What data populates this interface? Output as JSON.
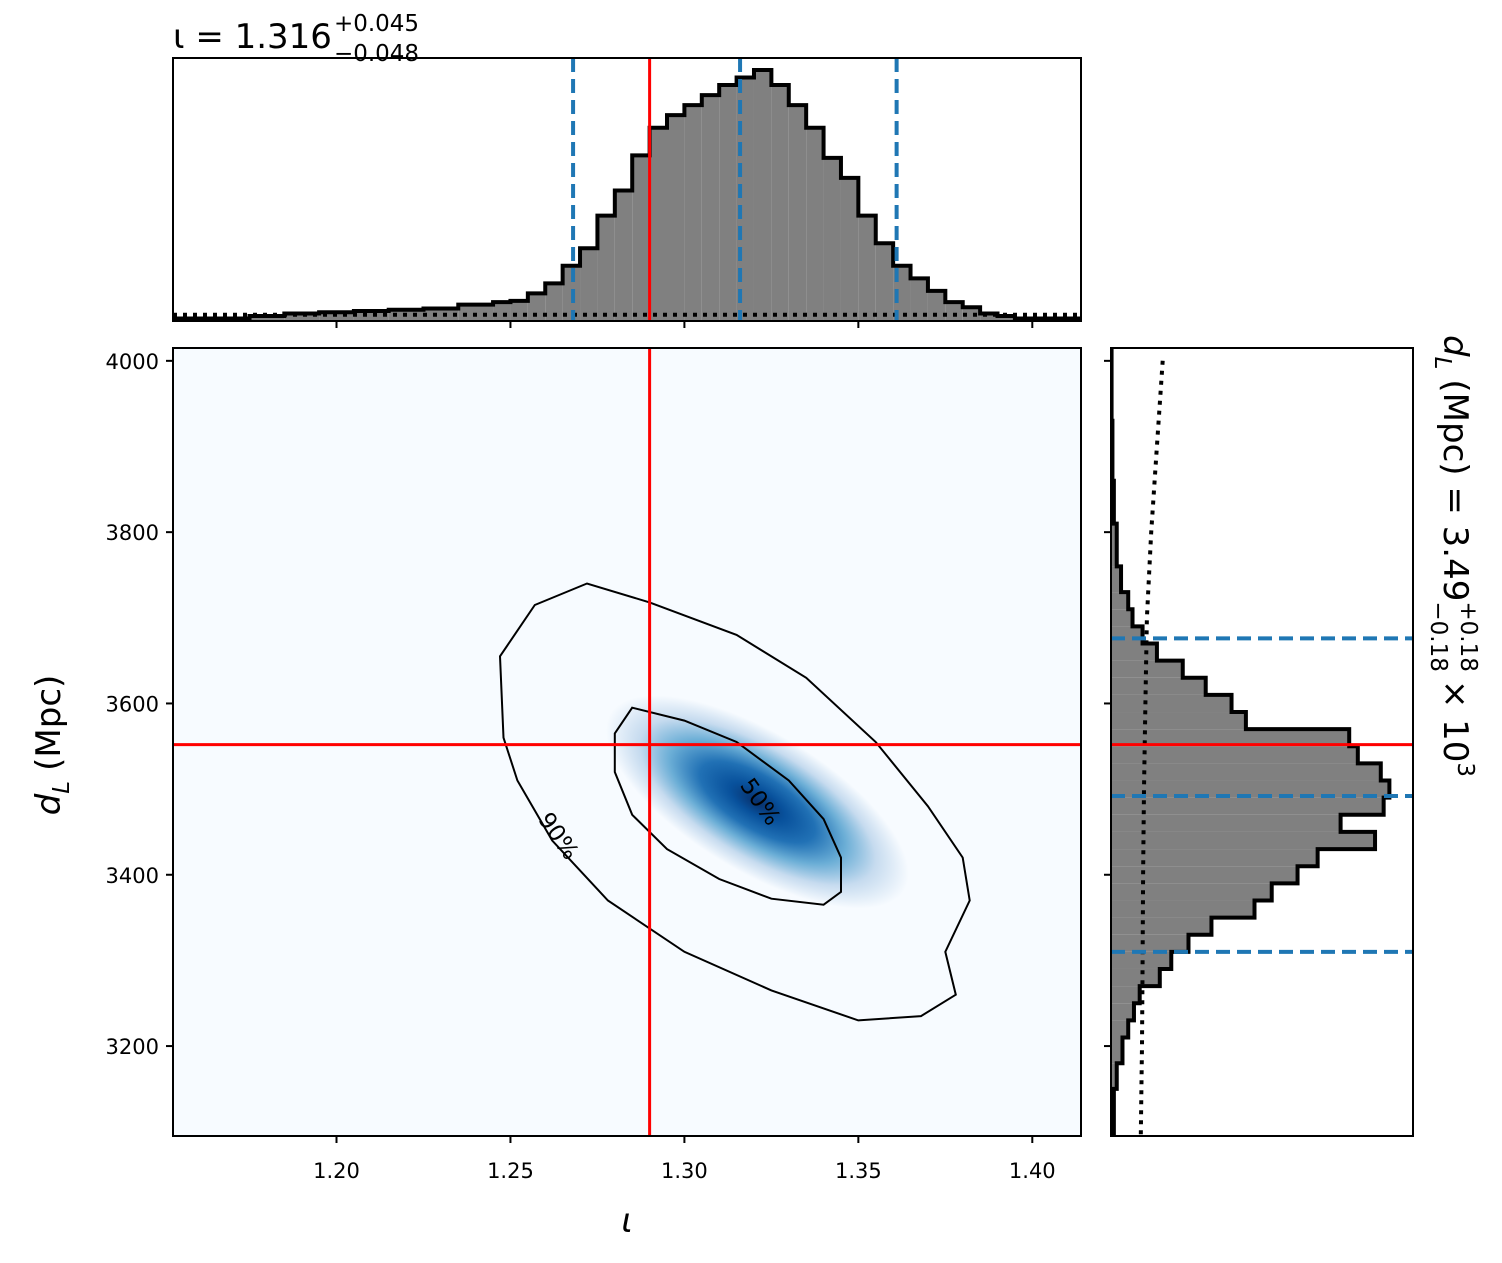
{
  "chart_data": [
    {
      "panel": "top-marginal",
      "type": "histogram",
      "title_main": "ι = 1.316",
      "title_sup": "+0.045",
      "title_sub": "−0.048",
      "xlim": [
        1.153,
        1.414
      ],
      "x_ticks": [
        1.2,
        1.25,
        1.3,
        1.35,
        1.4
      ],
      "bin_edges": [
        1.153,
        1.175,
        1.185,
        1.195,
        1.205,
        1.215,
        1.225,
        1.235,
        1.245,
        1.25,
        1.255,
        1.26,
        1.265,
        1.27,
        1.275,
        1.28,
        1.285,
        1.29,
        1.295,
        1.3,
        1.305,
        1.31,
        1.315,
        1.32,
        1.325,
        1.33,
        1.335,
        1.34,
        1.345,
        1.35,
        1.355,
        1.36,
        1.365,
        1.37,
        1.375,
        1.38,
        1.385,
        1.39,
        1.395,
        1.414
      ],
      "counts": [
        0.01,
        0.02,
        0.03,
        0.035,
        0.04,
        0.045,
        0.05,
        0.065,
        0.075,
        0.08,
        0.11,
        0.15,
        0.22,
        0.29,
        0.42,
        0.52,
        0.66,
        0.77,
        0.82,
        0.86,
        0.9,
        0.94,
        0.97,
        1.0,
        0.94,
        0.86,
        0.77,
        0.65,
        0.57,
        0.42,
        0.31,
        0.22,
        0.17,
        0.12,
        0.075,
        0.055,
        0.03,
        0.02,
        0.01
      ],
      "prior_level": 0.025,
      "quantiles": [
        1.268,
        1.316,
        1.361
      ],
      "injection": 1.29,
      "colors": {
        "fill": "#808080",
        "edge": "#000000",
        "quantile": "#1f77b4",
        "injection": "#ff0000"
      }
    },
    {
      "panel": "joint",
      "type": "heatmap",
      "xlabel": "ι",
      "ylabel": "d",
      "ylabel_sub": "L",
      "ylabel_unit": "(Mpc)",
      "xlim": [
        1.153,
        1.414
      ],
      "ylim": [
        3095,
        4015
      ],
      "x_ticks": [
        1.2,
        1.25,
        1.3,
        1.35,
        1.4
      ],
      "y_ticks": [
        3200,
        3400,
        3600,
        3800,
        4000
      ],
      "density_peak": {
        "x": 1.321,
        "y": 3485,
        "rot_deg": 31,
        "sigma_major": 0.45,
        "sigma_minor": 0.16
      },
      "contours": [
        {
          "label": "50%",
          "points": [
            [
              1.285,
              3595
            ],
            [
              1.3,
              3580
            ],
            [
              1.315,
              3555
            ],
            [
              1.33,
              3510
            ],
            [
              1.34,
              3465
            ],
            [
              1.345,
              3420
            ],
            [
              1.345,
              3380
            ],
            [
              1.34,
              3365
            ],
            [
              1.325,
              3372
            ],
            [
              1.31,
              3395
            ],
            [
              1.295,
              3430
            ],
            [
              1.285,
              3470
            ],
            [
              1.28,
              3520
            ],
            [
              1.28,
              3565
            ],
            [
              1.285,
              3595
            ]
          ]
        },
        {
          "label": "90%",
          "points": [
            [
              1.257,
              3715
            ],
            [
              1.272,
              3740
            ],
            [
              1.29,
              3718
            ],
            [
              1.315,
              3680
            ],
            [
              1.335,
              3630
            ],
            [
              1.355,
              3555
            ],
            [
              1.37,
              3480
            ],
            [
              1.38,
              3420
            ],
            [
              1.382,
              3370
            ],
            [
              1.375,
              3310
            ],
            [
              1.378,
              3260
            ],
            [
              1.368,
              3235
            ],
            [
              1.35,
              3230
            ],
            [
              1.325,
              3265
            ],
            [
              1.3,
              3310
            ],
            [
              1.278,
              3370
            ],
            [
              1.262,
              3440
            ],
            [
              1.252,
              3510
            ],
            [
              1.248,
              3560
            ],
            [
              1.247,
              3655
            ],
            [
              1.257,
              3715
            ]
          ]
        }
      ],
      "injection": {
        "x": 1.29,
        "y": 3552
      },
      "colors": {
        "contour": "#000000",
        "injection": "#ff0000",
        "cmap_low": "#f7fbff",
        "cmap_high": "#08306b"
      }
    },
    {
      "panel": "right-marginal",
      "type": "histogram",
      "orientation": "horizontal",
      "title_main": "d",
      "title_sub_L": "L",
      "title_rest": "(Mpc) = 3.49",
      "title_sup": "+0.18",
      "title_sub": "−0.18",
      "title_tail": "× 10",
      "title_exp": "3",
      "ylim": [
        3095,
        4015
      ],
      "bin_edges": [
        3095,
        3150,
        3180,
        3210,
        3230,
        3250,
        3270,
        3290,
        3310,
        3330,
        3350,
        3370,
        3390,
        3410,
        3430,
        3450,
        3470,
        3490,
        3510,
        3530,
        3550,
        3570,
        3590,
        3610,
        3630,
        3650,
        3670,
        3690,
        3710,
        3730,
        3760,
        3810,
        3860,
        3930,
        4015
      ],
      "counts": [
        0.01,
        0.02,
        0.04,
        0.06,
        0.08,
        0.1,
        0.17,
        0.21,
        0.27,
        0.35,
        0.5,
        0.56,
        0.65,
        0.72,
        0.92,
        0.8,
        0.95,
        0.97,
        0.94,
        0.86,
        0.83,
        0.47,
        0.42,
        0.33,
        0.25,
        0.16,
        0.11,
        0.075,
        0.06,
        0.035,
        0.02,
        0.01,
        0.005,
        0.002
      ],
      "prior_x": [
        0.18,
        0.16,
        0.14,
        0.125,
        0.12,
        0.115,
        0.112,
        0.11,
        0.108,
        0.106,
        0.104
      ],
      "prior_y": [
        4000,
        3900,
        3800,
        3700,
        3600,
        3500,
        3400,
        3300,
        3200,
        3150,
        3095
      ],
      "quantiles": [
        3310,
        3492,
        3676
      ],
      "injection": 3552,
      "colors": {
        "fill": "#808080",
        "edge": "#000000",
        "quantile": "#1f77b4",
        "injection": "#ff0000"
      }
    }
  ]
}
